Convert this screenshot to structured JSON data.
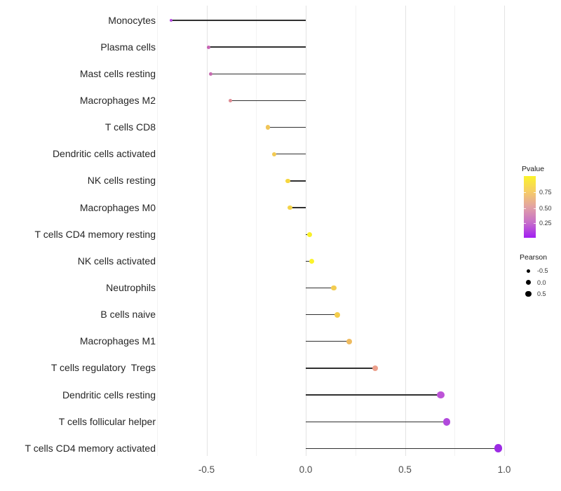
{
  "chart_data": {
    "type": "lollipop",
    "title": "",
    "xlabel": "",
    "ylabel": "",
    "grid": true,
    "xlim": [
      -0.79,
      1.06
    ],
    "x_ticks": [
      -0.5,
      0.0,
      0.5,
      1.0
    ],
    "x_tick_labels": [
      "-0.5",
      "0.0",
      "0.5",
      "1.0"
    ],
    "minor_gridlines": [
      -0.75,
      -0.25,
      0.25,
      0.75
    ],
    "series_note": "dot x-position and size encode Pearson correlation; dot color encodes Pvalue",
    "rows": [
      {
        "label": "Monocytes",
        "pearson": -0.68,
        "color": "#b44ce0"
      },
      {
        "label": "Plasma cells",
        "pearson": -0.49,
        "color": "#c765b4"
      },
      {
        "label": "Mast cells resting",
        "pearson": -0.48,
        "color": "#c76cb1"
      },
      {
        "label": "Macrophages M2",
        "pearson": -0.38,
        "color": "#de8b93"
      },
      {
        "label": "T cells CD8",
        "pearson": -0.19,
        "color": "#f0c558"
      },
      {
        "label": "Dendritic cells activated",
        "pearson": -0.16,
        "color": "#f3ca52"
      },
      {
        "label": "NK cells resting",
        "pearson": -0.09,
        "color": "#f6d63f"
      },
      {
        "label": "Macrophages M0",
        "pearson": -0.08,
        "color": "#f4d348"
      },
      {
        "label": "T cells CD4 memory resting",
        "pearson": 0.02,
        "color": "#f8ef28"
      },
      {
        "label": "NK cells activated",
        "pearson": 0.03,
        "color": "#fbf32a"
      },
      {
        "label": "Neutrophils",
        "pearson": 0.14,
        "color": "#f3cc50"
      },
      {
        "label": "B cells naive",
        "pearson": 0.16,
        "color": "#f4cd4c"
      },
      {
        "label": "Macrophages M1",
        "pearson": 0.22,
        "color": "#eebb60"
      },
      {
        "label": "T cells regulatory  Tregs",
        "pearson": 0.35,
        "color": "#ec9f8b"
      },
      {
        "label": "Dendritic cells resting",
        "pearson": 0.68,
        "color": "#bd53d7"
      },
      {
        "label": "T cells follicular helper",
        "pearson": 0.71,
        "color": "#b149dc"
      },
      {
        "label": "T cells CD4 memory activated",
        "pearson": 0.97,
        "color": "#9c2be4"
      }
    ],
    "legends": {
      "pvalue": {
        "title": "Pvalue",
        "ticks": [
          "0.75",
          "0.50",
          "0.25"
        ],
        "tick_pos": [
          0.265,
          0.52,
          0.76
        ],
        "gradient": [
          "#fbf32b",
          "#f6cd66",
          "#e2a2a4",
          "#c76fc9",
          "#a21ef2"
        ]
      },
      "pearson": {
        "title": "Pearson",
        "entries": [
          {
            "label": "-0.5",
            "size": 5
          },
          {
            "label": "0.0",
            "size": 7
          },
          {
            "label": "0.5",
            "size": 8.5
          }
        ]
      }
    }
  }
}
